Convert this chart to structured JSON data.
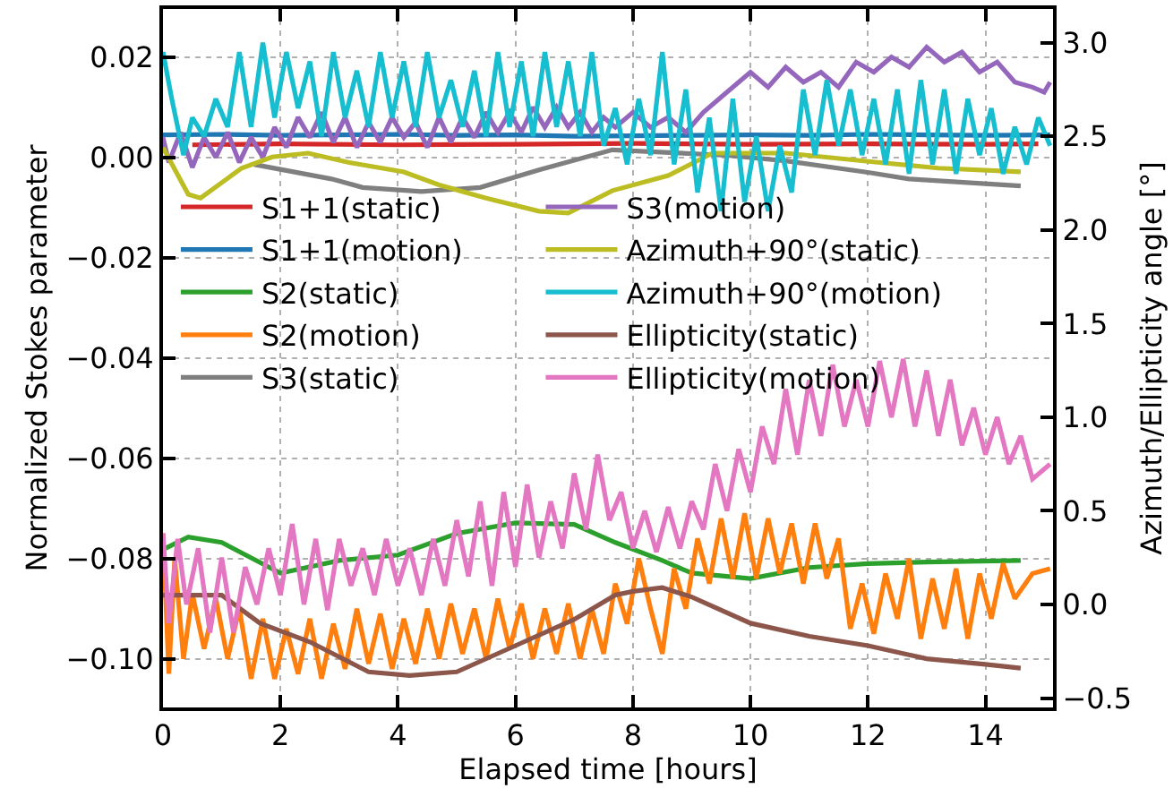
{
  "chart_data": {
    "type": "line",
    "xlabel": "Elapsed time [hours]",
    "ylabel": "Normalized Stokes parameter",
    "y2label": "Azimuth/Ellipticity angle [°]",
    "xlim": [
      0,
      15.15
    ],
    "xticks": [
      0,
      2,
      4,
      6,
      8,
      10,
      12,
      14
    ],
    "ylim": [
      -0.1097,
      0.0296
    ],
    "yticks": [
      {
        "value": -0.1,
        "label": "−0.10"
      },
      {
        "value": -0.08,
        "label": "−0.08"
      },
      {
        "value": -0.06,
        "label": "−0.06"
      },
      {
        "value": -0.04,
        "label": "−0.04"
      },
      {
        "value": -0.02,
        "label": "−0.02"
      },
      {
        "value": 0,
        "label": "0.00"
      },
      {
        "value": 0.02,
        "label": "0.02"
      }
    ],
    "y2lim": [
      -0.55,
      3.18
    ],
    "y2ticks": [
      {
        "value": -0.5,
        "label": "−0.5"
      },
      {
        "value": 0,
        "label": "0.0"
      },
      {
        "value": 0.5,
        "label": "0.5"
      },
      {
        "value": 1,
        "label": "1.0"
      },
      {
        "value": 1.5,
        "label": "1.5"
      },
      {
        "value": 2,
        "label": "2.0"
      },
      {
        "value": 2.5,
        "label": "2.5"
      },
      {
        "value": 3,
        "label": "3.0"
      }
    ],
    "grid": true,
    "legend": "left",
    "marker": "none",
    "line_style": "solid",
    "series": [
      {
        "name": "S1+1(static)",
        "color": "#d62728",
        "x": [
          0.5,
          2,
          4,
          6,
          8,
          10,
          12,
          14,
          14.9
        ],
        "values": [
          0.0025,
          0.0027,
          0.0025,
          0.0026,
          0.0028,
          0.0026,
          0.0027,
          0.0026,
          0.0027
        ]
      },
      {
        "name": "S1+1(motion)",
        "color": "#1f77b4",
        "x": [
          0,
          1,
          2,
          3,
          4,
          5,
          6,
          7,
          8,
          9,
          10,
          11,
          12,
          13,
          14,
          15.1
        ],
        "values": [
          0.0045,
          0.0046,
          0.0044,
          0.0045,
          0.0046,
          0.0044,
          0.0045,
          0.0042,
          0.0043,
          0.0044,
          0.0045,
          0.0044,
          0.0046,
          0.0045,
          0.0044,
          0.0045
        ]
      },
      {
        "name": "S2(static)",
        "color": "#2ca02c",
        "x": [
          0,
          0.43,
          1,
          2,
          3,
          4,
          5,
          6,
          7,
          7.7,
          8.5,
          9,
          10,
          11,
          12,
          13,
          14.6
        ],
        "values": [
          -0.0782,
          -0.0757,
          -0.0768,
          -0.0829,
          -0.0804,
          -0.0793,
          -0.075,
          -0.0729,
          -0.0732,
          -0.0768,
          -0.0804,
          -0.0829,
          -0.084,
          -0.0818,
          -0.081,
          -0.0807,
          -0.0804
        ]
      },
      {
        "name": "S2(motion)",
        "color": "#ff7f0e",
        "x": [
          0,
          0.1,
          0.2,
          0.35,
          0.5,
          0.7,
          0.9,
          1.1,
          1.3,
          1.5,
          1.7,
          1.9,
          2.1,
          2.3,
          2.5,
          2.7,
          2.9,
          3.1,
          3.3,
          3.5,
          3.7,
          3.9,
          4.1,
          4.3,
          4.5,
          4.7,
          4.9,
          5.1,
          5.3,
          5.5,
          5.7,
          5.9,
          6.1,
          6.3,
          6.5,
          6.7,
          6.9,
          7.1,
          7.3,
          7.5,
          7.7,
          7.9,
          8.1,
          8.3,
          8.5,
          8.7,
          8.9,
          9.1,
          9.3,
          9.5,
          9.7,
          9.9,
          10.1,
          10.3,
          10.5,
          10.7,
          10.9,
          11.1,
          11.3,
          11.5,
          11.7,
          11.9,
          12.1,
          12.3,
          12.5,
          12.7,
          12.9,
          13.1,
          13.3,
          13.5,
          13.7,
          13.9,
          14.1,
          14.3,
          14.5,
          14.8,
          15.1
        ],
        "values": [
          -0.075,
          -0.103,
          -0.08,
          -0.1,
          -0.087,
          -0.098,
          -0.088,
          -0.1,
          -0.09,
          -0.104,
          -0.092,
          -0.104,
          -0.094,
          -0.103,
          -0.092,
          -0.104,
          -0.093,
          -0.102,
          -0.09,
          -0.101,
          -0.091,
          -0.102,
          -0.092,
          -0.101,
          -0.09,
          -0.1,
          -0.089,
          -0.099,
          -0.09,
          -0.1,
          -0.088,
          -0.098,
          -0.089,
          -0.1,
          -0.09,
          -0.099,
          -0.089,
          -0.1,
          -0.09,
          -0.099,
          -0.085,
          -0.093,
          -0.08,
          -0.09,
          -0.099,
          -0.082,
          -0.09,
          -0.076,
          -0.085,
          -0.072,
          -0.084,
          -0.071,
          -0.084,
          -0.072,
          -0.083,
          -0.073,
          -0.085,
          -0.073,
          -0.084,
          -0.076,
          -0.094,
          -0.085,
          -0.095,
          -0.083,
          -0.092,
          -0.08,
          -0.096,
          -0.084,
          -0.094,
          -0.082,
          -0.096,
          -0.083,
          -0.092,
          -0.081,
          -0.088,
          -0.083,
          -0.082
        ]
      },
      {
        "name": "S3(static)",
        "color": "#7f7f7f",
        "x": [
          1.55,
          2.87,
          3.4,
          4.4,
          5.4,
          6.4,
          7.65,
          9.6,
          10.6,
          12,
          12.7,
          14.6
        ],
        "values": [
          -0.0014,
          -0.0043,
          -0.006,
          -0.0068,
          -0.006,
          -0.0025,
          0.0015,
          0.0004,
          -0.0007,
          -0.003,
          -0.0043,
          -0.0057
        ]
      },
      {
        "name": "S3(motion)",
        "color": "#9467bd",
        "x": [
          0,
          0.1,
          0.3,
          0.5,
          0.7,
          0.9,
          1.1,
          1.3,
          1.5,
          1.7,
          1.9,
          2.1,
          2.3,
          2.5,
          2.7,
          2.9,
          3.1,
          3.3,
          3.5,
          3.7,
          3.9,
          4.1,
          4.3,
          4.5,
          4.7,
          4.9,
          5.1,
          5.3,
          5.5,
          5.7,
          5.9,
          6.1,
          6.3,
          6.5,
          6.7,
          6.9,
          7.1,
          7.3,
          7.5,
          7.7,
          8.0,
          8.3,
          8.6,
          8.9,
          9.2,
          9.5,
          9.8,
          10.0,
          10.3,
          10.6,
          10.9,
          11.2,
          11.5,
          11.8,
          12.1,
          12.4,
          12.7,
          13.0,
          13.3,
          13.6,
          13.9,
          14.2,
          14.5,
          14.8,
          15.0,
          15.1
        ],
        "values": [
          0.004,
          -0.001,
          0.005,
          -0.002,
          0.004,
          0.0,
          0.005,
          -0.001,
          0.004,
          0.0,
          0.006,
          0.002,
          0.008,
          0.004,
          0.009,
          0.003,
          0.008,
          0.002,
          0.007,
          0.003,
          0.008,
          0.004,
          0.007,
          0.002,
          0.008,
          0.003,
          0.008,
          0.004,
          0.009,
          0.005,
          0.009,
          0.005,
          0.01,
          0.006,
          0.01,
          0.006,
          0.009,
          0.005,
          0.008,
          0.006,
          0.009,
          0.006,
          0.008,
          0.005,
          0.009,
          0.012,
          0.015,
          0.017,
          0.014,
          0.018,
          0.015,
          0.017,
          0.014,
          0.019,
          0.017,
          0.02,
          0.018,
          0.022,
          0.019,
          0.021,
          0.017,
          0.019,
          0.015,
          0.014,
          0.013,
          0.015
        ]
      },
      {
        "name": "Azimuth+90°(static)",
        "color": "#bcbd22",
        "axis": "y2",
        "x": [
          0,
          0.43,
          0.64,
          1.34,
          1.86,
          2.47,
          3.17,
          4.1,
          4.7,
          5.5,
          6.4,
          6.9,
          7.65,
          8.6,
          9.35,
          10.6,
          12.2,
          13.2,
          14.6
        ],
        "values": [
          2.44,
          2.19,
          2.17,
          2.33,
          2.39,
          2.41,
          2.36,
          2.31,
          2.24,
          2.17,
          2.1,
          2.09,
          2.21,
          2.29,
          2.41,
          2.41,
          2.36,
          2.33,
          2.31
        ]
      },
      {
        "name": "Azimuth+90°(motion)",
        "color": "#17becf",
        "axis": "y2",
        "x": [
          0,
          0.15,
          0.35,
          0.5,
          0.7,
          0.9,
          1.1,
          1.3,
          1.5,
          1.7,
          1.9,
          2.1,
          2.3,
          2.5,
          2.7,
          2.9,
          3.1,
          3.3,
          3.5,
          3.7,
          3.9,
          4.1,
          4.3,
          4.5,
          4.7,
          4.9,
          5.1,
          5.3,
          5.5,
          5.7,
          5.9,
          6.1,
          6.3,
          6.5,
          6.7,
          6.9,
          7.1,
          7.3,
          7.5,
          7.7,
          7.9,
          8.1,
          8.3,
          8.5,
          8.7,
          8.9,
          9.1,
          9.3,
          9.5,
          9.7,
          9.9,
          10.1,
          10.3,
          10.5,
          10.7,
          10.9,
          11.1,
          11.3,
          11.5,
          11.7,
          11.9,
          12.1,
          12.3,
          12.5,
          12.7,
          12.9,
          13.1,
          13.3,
          13.5,
          13.7,
          13.9,
          14.1,
          14.3,
          14.5,
          14.7,
          14.9,
          15.1
        ],
        "values": [
          2.95,
          2.7,
          2.4,
          2.6,
          2.5,
          2.7,
          2.55,
          2.95,
          2.55,
          3.0,
          2.6,
          2.95,
          2.65,
          2.9,
          2.5,
          2.95,
          2.6,
          2.85,
          2.55,
          2.95,
          2.6,
          2.9,
          2.55,
          2.95,
          2.6,
          2.8,
          2.55,
          2.85,
          2.5,
          2.95,
          2.55,
          2.9,
          2.5,
          2.95,
          2.55,
          2.9,
          2.5,
          2.95,
          2.45,
          2.65,
          2.35,
          2.7,
          2.4,
          2.95,
          2.35,
          2.75,
          2.2,
          2.6,
          2.1,
          2.7,
          2.15,
          2.5,
          2.1,
          2.45,
          2.2,
          2.75,
          2.4,
          2.8,
          2.45,
          2.75,
          2.4,
          2.7,
          2.35,
          2.75,
          2.3,
          2.8,
          2.35,
          2.75,
          2.3,
          2.7,
          2.4,
          2.65,
          2.3,
          2.55,
          2.35,
          2.6,
          2.45
        ]
      },
      {
        "name": "Ellipticity(static)",
        "color": "#8c564b",
        "axis": "y2",
        "x": [
          0,
          1.0,
          1.65,
          2.5,
          3.5,
          4.2,
          5,
          6,
          7,
          7.7,
          8,
          8.5,
          9,
          10,
          11,
          12,
          13,
          14,
          14.6
        ],
        "values": [
          0.05,
          0.05,
          -0.1,
          -0.2,
          -0.36,
          -0.38,
          -0.36,
          -0.22,
          -0.08,
          0.05,
          0.07,
          0.09,
          0.04,
          -0.1,
          -0.17,
          -0.22,
          -0.29,
          -0.32,
          -0.34
        ]
      },
      {
        "name": "Ellipticity(motion)",
        "color": "#e377c2",
        "axis": "y2",
        "x": [
          0,
          0.1,
          0.25,
          0.4,
          0.6,
          0.8,
          1.0,
          1.2,
          1.4,
          1.6,
          1.8,
          2.0,
          2.2,
          2.4,
          2.6,
          2.8,
          3.0,
          3.2,
          3.4,
          3.6,
          3.8,
          4.0,
          4.2,
          4.4,
          4.6,
          4.8,
          5.0,
          5.2,
          5.4,
          5.6,
          5.8,
          6.0,
          6.2,
          6.4,
          6.6,
          6.8,
          7.0,
          7.2,
          7.4,
          7.6,
          7.8,
          8.0,
          8.2,
          8.4,
          8.6,
          8.8,
          9.0,
          9.2,
          9.4,
          9.6,
          9.8,
          10.0,
          10.2,
          10.4,
          10.6,
          10.8,
          11.0,
          11.2,
          11.4,
          11.6,
          11.8,
          12.0,
          12.2,
          12.4,
          12.6,
          12.8,
          13.0,
          13.2,
          13.4,
          13.6,
          13.8,
          14.0,
          14.2,
          14.4,
          14.6,
          14.8,
          15.1
        ],
        "values": [
          0.38,
          -0.1,
          0.35,
          0.0,
          0.3,
          -0.15,
          0.25,
          -0.15,
          0.2,
          0.0,
          0.3,
          0.05,
          0.43,
          0.0,
          0.35,
          -0.03,
          0.35,
          0.1,
          0.3,
          0.05,
          0.35,
          0.1,
          0.3,
          0.05,
          0.35,
          0.1,
          0.45,
          0.15,
          0.55,
          0.1,
          0.6,
          0.2,
          0.64,
          0.25,
          0.55,
          0.3,
          0.7,
          0.4,
          0.8,
          0.45,
          0.6,
          0.3,
          0.5,
          0.28,
          0.52,
          0.3,
          0.55,
          0.4,
          0.75,
          0.5,
          0.83,
          0.6,
          0.95,
          0.75,
          1.15,
          0.8,
          1.2,
          0.9,
          1.28,
          0.95,
          1.2,
          0.95,
          1.3,
          1.0,
          1.31,
          0.95,
          1.25,
          0.9,
          1.2,
          0.85,
          1.05,
          0.8,
          1.0,
          0.75,
          0.9,
          0.67,
          0.75
        ]
      }
    ]
  }
}
